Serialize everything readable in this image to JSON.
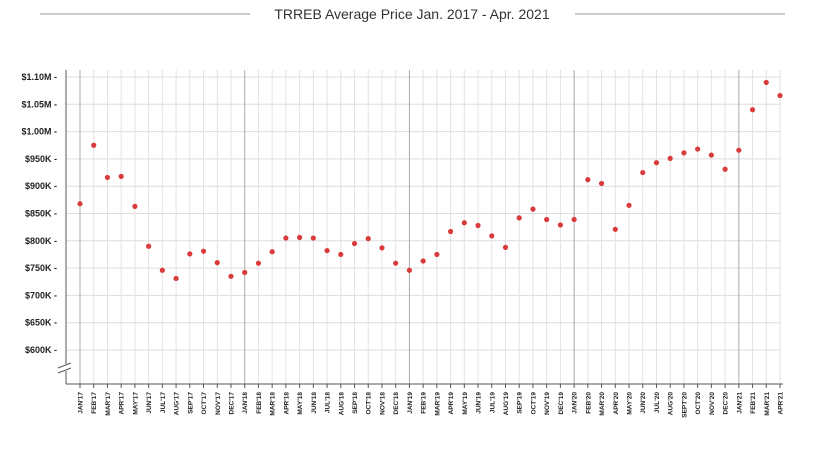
{
  "chart_data": {
    "type": "scatter",
    "title": "TRREB Average Price Jan. 2017 - Apr. 2021",
    "xlabel": "",
    "ylabel": "",
    "grid": true,
    "point_color": "#d93a3a",
    "ylim": [
      550000,
      1100000
    ],
    "y_ticks": [
      {
        "value": 600000,
        "label": "$600K -"
      },
      {
        "value": 650000,
        "label": "$650K -"
      },
      {
        "value": 700000,
        "label": "$700K -"
      },
      {
        "value": 750000,
        "label": "$750K -"
      },
      {
        "value": 800000,
        "label": "$800K -"
      },
      {
        "value": 850000,
        "label": "$850K -"
      },
      {
        "value": 900000,
        "label": "$900K -"
      },
      {
        "value": 950000,
        "label": "$950K -"
      },
      {
        "value": 1000000,
        "label": "$1.00M -"
      },
      {
        "value": 1050000,
        "label": "$1.05M -"
      },
      {
        "value": 1100000,
        "label": "$1.10M -"
      }
    ],
    "categories": [
      "JAN'17",
      "FEB'17",
      "MAR'17",
      "APR'17",
      "MAY'17",
      "JUN'17",
      "JUL'17",
      "AUG'17",
      "SEP'17",
      "OCT'17",
      "NOV'17",
      "DEC'17",
      "JAN'18",
      "FEB'18",
      "MAR'18",
      "APR'18",
      "MAY'18",
      "JUN'18",
      "JUL'18",
      "AUG'18",
      "SEP'18",
      "OCT'18",
      "NOV'18",
      "DEC'18",
      "JAN'19",
      "FEB'19",
      "MAR'19",
      "APR'19",
      "MAY'19",
      "JUN'19",
      "JUL'19",
      "AUG'19",
      "SEP'19",
      "OCT'19",
      "NOV'19",
      "DEC'19",
      "JAN'20",
      "FEB'20",
      "MAR'20",
      "APR'20",
      "MAY'20",
      "JUN'20",
      "JUL'20",
      "AUG'20",
      "SEPT'20",
      "OCT'20",
      "NOV'20",
      "DEC'20",
      "JAN'21",
      "FEB'21",
      "MAR'21",
      "APR'21"
    ],
    "values": [
      868000,
      975000,
      916000,
      918000,
      863000,
      790000,
      746000,
      731000,
      776000,
      781000,
      760000,
      735000,
      742000,
      759000,
      780000,
      805000,
      806000,
      805000,
      782000,
      775000,
      795000,
      804000,
      787000,
      759000,
      746000,
      763000,
      775000,
      817000,
      833000,
      828000,
      809000,
      788000,
      842000,
      858000,
      839000,
      829000,
      839000,
      912000,
      905000,
      821000,
      865000,
      925000,
      943000,
      951000,
      961000,
      968000,
      957000,
      931000,
      966000,
      1040000,
      1090000,
      1066000
    ]
  }
}
